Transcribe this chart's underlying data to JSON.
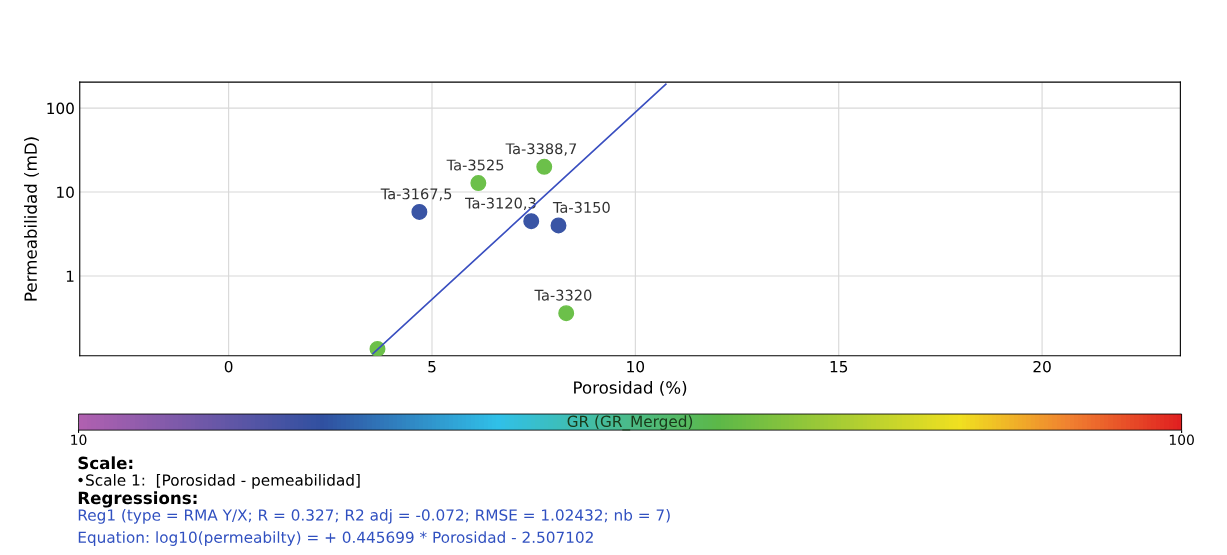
{
  "chart_data": {
    "type": "scatter",
    "xlabel": "Porosidad (%)",
    "ylabel": "Permeabilidad (mD)",
    "clabel": "GR (GR_Merged)",
    "log": "y",
    "xlim": [
      -3.66,
      23.4
    ],
    "ylim": [
      0.112,
      204
    ],
    "xticks": [
      0,
      5,
      10,
      15,
      20
    ],
    "yticks": [
      1,
      10,
      100
    ],
    "clim": [
      10,
      100
    ],
    "cticks": [
      10,
      100
    ],
    "grid": true,
    "legend": false,
    "series": [
      {
        "marker": "circle",
        "x": [
          3.66,
          4.69,
          6.14,
          7.76,
          7.44,
          8.11,
          8.3
        ],
        "values": [
          0.135,
          5.8,
          12.8,
          20,
          4.5,
          4.0,
          0.36
        ],
        "colors": [
          "#6cc04a",
          "#3a55a5",
          "#6cc04a",
          "#6cc04a",
          "#3a55a5",
          "#3a55a5",
          "#6cc04a"
        ]
      },
      {
        "type": "line",
        "color": "#3a4fc0",
        "x": [
          3.55,
          10.75
        ],
        "values": [
          0.119,
          192.4
        ]
      }
    ],
    "annotations": [
      {
        "text": "Ta-3167,5",
        "x": 4.69,
        "y": 5.8
      },
      {
        "text": "Ta-3525",
        "x": 6.14,
        "y": 12.8
      },
      {
        "text": "Ta-3388,7",
        "x": 7.76,
        "y": 20
      },
      {
        "text": "Ta-3120,3",
        "x": 7.44,
        "y": 4.5
      },
      {
        "text": "Ta-3150",
        "x": 8.11,
        "y": 4.0
      },
      {
        "text": "Ta-3320",
        "x": 8.3,
        "y": 0.36
      },
      "Scale:",
      "•Scale 1:  [Porosidad - pemeabilidad]",
      "Regressions:",
      "Reg1 (type = RMA Y/X; R = 0.327; R2 adj = -0.072; RMSE = 1.02432; nb = 7)",
      "Equation: log10(permeabilty) = + 0.445699 * Porosidad - 2.507102"
    ]
  }
}
